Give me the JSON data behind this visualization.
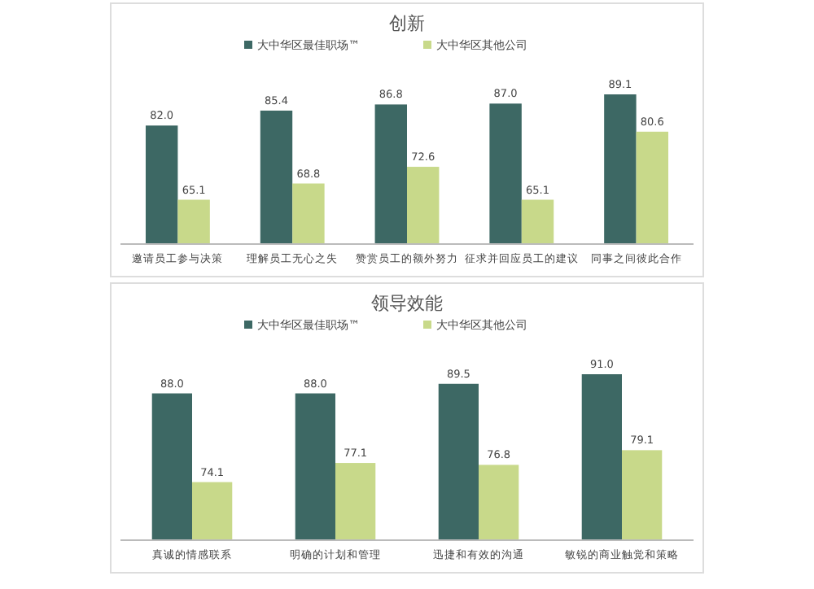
{
  "chart_data": [
    {
      "type": "bar",
      "title": "创新",
      "categories": [
        "邀请员工参与决策",
        "理解员工无心之失",
        "赞赏员工的额外努力",
        "征求并回应员工的建议",
        "同事之间彼此合作"
      ],
      "series": [
        {
          "name": "大中华区最佳职场™",
          "color": "#3d6864",
          "values": [
            82.0,
            85.4,
            86.8,
            87.0,
            89.1
          ],
          "value_labels": [
            "82.0",
            "85.4",
            "86.8",
            "87.0",
            "89.1"
          ]
        },
        {
          "name": "大中华区其他公司",
          "color": "#c8d98a",
          "values": [
            65.1,
            68.8,
            72.6,
            65.1,
            80.6
          ],
          "value_labels": [
            "65.1",
            "68.8",
            "72.6",
            "65.1",
            "80.6"
          ]
        }
      ],
      "ylim": [
        55,
        89.1
      ],
      "legend": "top"
    },
    {
      "type": "bar",
      "title": "领导效能",
      "categories": [
        "真诚的情感联系",
        "明确的计划和管理",
        "迅捷和有效的沟通",
        "敏锐的商业触觉和策略"
      ],
      "series": [
        {
          "name": "大中华区最佳职场™",
          "color": "#3d6864",
          "values": [
            88.0,
            88.0,
            89.5,
            91.0
          ],
          "value_labels": [
            "88.0",
            "88.0",
            "89.5",
            "91.0"
          ]
        },
        {
          "name": "大中华区其他公司",
          "color": "#c8d98a",
          "values": [
            74.1,
            77.1,
            76.8,
            79.1
          ],
          "value_labels": [
            "74.1",
            "77.1",
            "76.8",
            "79.1"
          ]
        }
      ],
      "ylim": [
        65,
        91.0
      ],
      "legend": "top"
    }
  ]
}
